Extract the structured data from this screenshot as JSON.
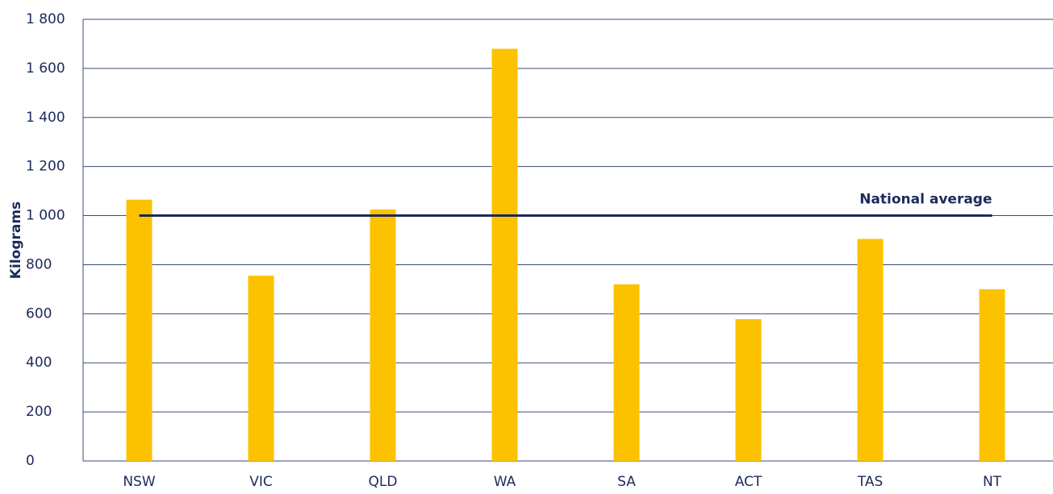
{
  "chart_data": {
    "type": "bar",
    "y_axis_label": "Kilograms",
    "categories": [
      "NSW",
      "VIC",
      "QLD",
      "WA",
      "SA",
      "ACT",
      "TAS",
      "NT"
    ],
    "values": [
      1065,
      755,
      1025,
      1680,
      720,
      578,
      905,
      700
    ],
    "color": "#fcc200",
    "ylim": [
      0,
      1800
    ],
    "yticks": [
      0,
      200,
      400,
      600,
      800,
      {
        "value": 1000,
        "label": "1 000"
      },
      {
        "value": 1200,
        "label": "1 200"
      },
      {
        "value": 1400,
        "label": "1 400"
      },
      {
        "value": 1600,
        "label": "1 600"
      },
      {
        "value": 1800,
        "label": "1 800"
      }
    ],
    "grid": true,
    "reference_line": {
      "label": "National average",
      "value": 1000,
      "color": "#1b2a5c"
    }
  }
}
